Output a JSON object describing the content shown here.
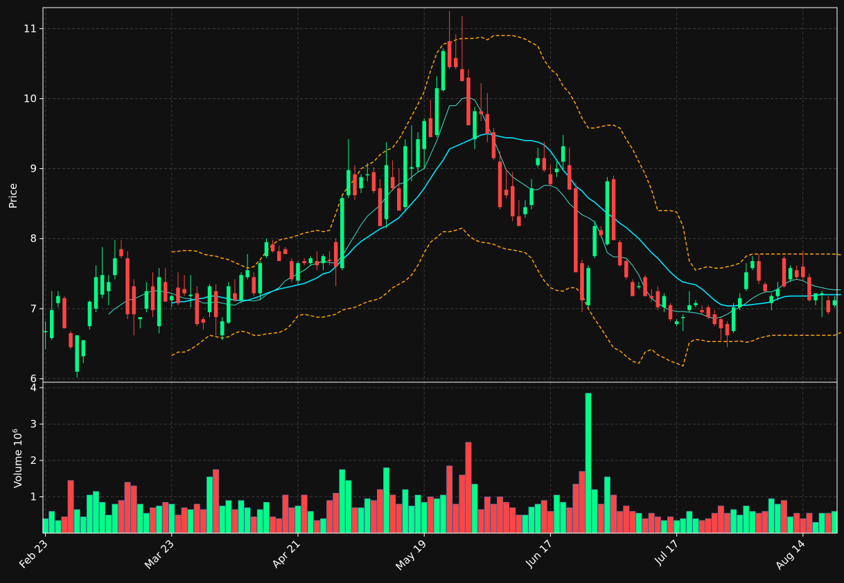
{
  "chart_data": {
    "type": "candlestick",
    "theme": {
      "background": "#111111",
      "grid_color": "#444444",
      "up_color": "#00ff88",
      "down_color": "#ff4444",
      "mav_fast_color": "#40e0d0",
      "mav_slow_color": "#00e5ff",
      "band_color": "#ffa500"
    },
    "ylabel": "Price",
    "volume_ylabel": "Volume  10",
    "volume_exponent": "6",
    "price_ylim": [
      5.95,
      11.3
    ],
    "volume_ylim": [
      0,
      4.15
    ],
    "price_ticks": [
      "6",
      "7",
      "8",
      "9",
      "10",
      "11"
    ],
    "volume_ticks": [
      "1",
      "2",
      "3",
      "4"
    ],
    "x_ticks": [
      {
        "index": 0,
        "label": "Feb 23"
      },
      {
        "index": 20,
        "label": "Mar 23"
      },
      {
        "index": 40,
        "label": "Apr 21"
      },
      {
        "index": 60,
        "label": "May 19"
      },
      {
        "index": 80,
        "label": "Jun 17"
      },
      {
        "index": 100,
        "label": "Jul 17"
      },
      {
        "index": 120,
        "label": "Aug 14"
      }
    ],
    "ohlcv": [
      [
        6.68,
        6.82,
        6.42,
        6.68,
        0.4
      ],
      [
        6.58,
        7.25,
        6.55,
        6.98,
        0.6
      ],
      [
        7.08,
        7.25,
        7.02,
        7.18,
        0.35
      ],
      [
        7.15,
        7.18,
        6.72,
        6.72,
        0.45
      ],
      [
        6.65,
        6.68,
        6.42,
        6.45,
        1.45
      ],
      [
        6.1,
        6.62,
        6.02,
        6.62,
        0.65
      ],
      [
        6.32,
        6.55,
        6.22,
        6.55,
        0.45
      ],
      [
        6.75,
        7.12,
        6.7,
        7.1,
        1.05
      ],
      [
        7.0,
        7.62,
        6.95,
        7.45,
        1.15
      ],
      [
        7.2,
        7.88,
        7.15,
        7.48,
        0.85
      ],
      [
        7.25,
        7.48,
        7.05,
        7.38,
        0.5
      ],
      [
        7.48,
        7.98,
        7.42,
        7.72,
        0.8
      ],
      [
        7.85,
        7.98,
        7.72,
        7.75,
        0.9
      ],
      [
        7.72,
        7.82,
        6.85,
        6.92,
        1.4
      ],
      [
        7.32,
        7.42,
        6.62,
        6.92,
        1.3
      ],
      [
        6.85,
        6.88,
        6.72,
        6.88,
        0.8
      ],
      [
        7.0,
        7.38,
        6.95,
        7.25,
        0.55
      ],
      [
        7.32,
        7.52,
        6.88,
        6.98,
        0.7
      ],
      [
        6.75,
        7.58,
        6.65,
        7.45,
        0.75
      ],
      [
        7.38,
        7.58,
        7.12,
        7.1,
        0.85
      ],
      [
        7.12,
        7.2,
        7.02,
        7.18,
        0.8
      ],
      [
        7.3,
        7.52,
        7.05,
        7.08,
        0.5
      ],
      [
        7.28,
        7.48,
        7.18,
        7.22,
        0.7
      ],
      [
        7.18,
        7.48,
        7.02,
        7.2,
        0.65
      ],
      [
        7.22,
        7.32,
        6.75,
        6.78,
        0.8
      ],
      [
        6.85,
        6.88,
        6.7,
        6.8,
        0.65
      ],
      [
        6.95,
        7.35,
        6.88,
        7.32,
        1.55
      ],
      [
        7.25,
        7.35,
        6.62,
        6.88,
        1.75
      ],
      [
        6.62,
        6.88,
        6.55,
        6.82,
        0.75
      ],
      [
        6.8,
        7.38,
        6.78,
        7.32,
        0.9
      ],
      [
        7.22,
        7.42,
        7.1,
        7.12,
        0.65
      ],
      [
        7.12,
        7.52,
        7.08,
        7.48,
        0.9
      ],
      [
        7.45,
        7.78,
        7.42,
        7.55,
        0.7
      ],
      [
        7.45,
        7.52,
        7.18,
        7.22,
        0.45
      ],
      [
        7.22,
        7.68,
        7.12,
        7.65,
        0.65
      ],
      [
        7.75,
        8.0,
        7.72,
        7.95,
        0.85
      ],
      [
        7.92,
        7.98,
        7.8,
        7.82,
        0.45
      ],
      [
        7.82,
        7.9,
        7.68,
        7.68,
        0.4
      ],
      [
        7.85,
        7.88,
        7.78,
        7.78,
        1.05
      ],
      [
        7.68,
        7.72,
        7.38,
        7.42,
        0.7
      ],
      [
        7.4,
        7.68,
        7.35,
        7.65,
        0.75
      ],
      [
        7.68,
        7.72,
        7.62,
        7.65,
        1.05
      ],
      [
        7.65,
        7.75,
        7.62,
        7.72,
        0.6
      ],
      [
        7.68,
        7.82,
        7.55,
        7.62,
        0.35
      ],
      [
        7.65,
        7.78,
        7.55,
        7.75,
        0.4
      ],
      [
        7.7,
        7.82,
        7.62,
        7.68,
        0.9
      ],
      [
        7.95,
        8.0,
        7.32,
        7.6,
        1.1
      ],
      [
        7.58,
        8.62,
        7.55,
        8.58,
        1.75
      ],
      [
        8.62,
        9.42,
        8.58,
        8.98,
        1.45
      ],
      [
        8.92,
        9.05,
        8.55,
        8.62,
        0.7
      ],
      [
        8.72,
        8.92,
        8.65,
        8.88,
        0.7
      ],
      [
        8.92,
        9.08,
        8.82,
        8.92,
        0.95
      ],
      [
        8.95,
        9.02,
        8.65,
        8.68,
        0.9
      ],
      [
        8.72,
        8.85,
        8.22,
        8.18,
        1.2
      ],
      [
        8.28,
        9.38,
        8.15,
        9.05,
        1.8
      ],
      [
        8.88,
        9.12,
        8.68,
        8.72,
        1.05
      ],
      [
        8.72,
        9.0,
        8.55,
        8.4,
        0.8
      ],
      [
        8.45,
        9.42,
        8.4,
        9.32,
        1.2
      ],
      [
        9.0,
        9.62,
        8.82,
        9.02,
        0.75
      ],
      [
        9.02,
        9.52,
        8.95,
        9.42,
        1.05
      ],
      [
        9.28,
        9.72,
        9.0,
        9.68,
        0.85
      ],
      [
        9.72,
        9.98,
        9.5,
        9.45,
        1.0
      ],
      [
        9.48,
        10.32,
        9.45,
        10.15,
        0.95
      ],
      [
        10.12,
        10.72,
        10.1,
        10.68,
        1.05
      ],
      [
        10.82,
        11.25,
        10.42,
        10.45,
        1.85
      ],
      [
        10.58,
        10.92,
        10.42,
        10.45,
        0.8
      ],
      [
        10.42,
        11.18,
        10.28,
        10.25,
        1.6
      ],
      [
        10.3,
        10.42,
        9.62,
        9.62,
        2.5
      ],
      [
        9.42,
        9.88,
        9.28,
        9.82,
        1.35
      ],
      [
        9.82,
        10.22,
        9.68,
        9.78,
        0.65
      ],
      [
        9.78,
        10.08,
        9.38,
        9.5,
        1.0
      ],
      [
        9.52,
        9.58,
        9.12,
        9.15,
        0.8
      ],
      [
        9.1,
        9.25,
        8.42,
        8.45,
        1.0
      ],
      [
        8.7,
        9.0,
        8.58,
        8.62,
        0.85
      ],
      [
        8.75,
        8.95,
        8.25,
        8.32,
        0.7
      ],
      [
        8.32,
        8.55,
        8.18,
        8.18,
        0.5
      ],
      [
        8.35,
        8.55,
        8.3,
        8.45,
        0.5
      ],
      [
        8.48,
        8.85,
        8.42,
        8.72,
        0.72
      ],
      [
        9.05,
        9.3,
        9.02,
        9.15,
        0.8
      ],
      [
        9.15,
        9.38,
        8.95,
        8.98,
        0.9
      ],
      [
        8.92,
        9.05,
        8.75,
        8.78,
        0.6
      ],
      [
        8.95,
        9.1,
        8.88,
        9.0,
        1.05
      ],
      [
        9.1,
        9.48,
        8.98,
        9.32,
        0.85
      ],
      [
        9.05,
        9.3,
        8.72,
        8.7,
        0.7
      ],
      [
        8.72,
        8.8,
        7.52,
        7.52,
        1.35
      ],
      [
        7.65,
        7.7,
        6.95,
        7.12,
        1.7
      ],
      [
        7.05,
        7.62,
        7.02,
        7.58,
        3.85
      ],
      [
        7.75,
        8.25,
        7.72,
        8.18,
        1.2
      ],
      [
        8.12,
        8.18,
        8.02,
        8.05,
        0.8
      ],
      [
        7.92,
        8.88,
        7.9,
        8.82,
        1.55
      ],
      [
        8.85,
        8.9,
        7.98,
        7.98,
        1.05
      ],
      [
        7.95,
        7.98,
        7.6,
        7.62,
        0.6
      ],
      [
        7.68,
        7.7,
        7.42,
        7.45,
        0.75
      ],
      [
        7.38,
        7.42,
        7.18,
        7.18,
        0.6
      ],
      [
        7.32,
        7.38,
        7.28,
        7.32,
        0.55
      ],
      [
        7.45,
        7.48,
        7.18,
        7.18,
        0.4
      ],
      [
        7.18,
        7.28,
        7.1,
        7.15,
        0.55
      ],
      [
        7.25,
        7.32,
        6.98,
        7.02,
        0.45
      ],
      [
        7.02,
        7.22,
        6.95,
        7.18,
        0.35
      ],
      [
        7.05,
        7.08,
        6.82,
        6.85,
        0.45
      ],
      [
        6.78,
        6.85,
        6.75,
        6.82,
        0.35
      ],
      [
        6.88,
        6.92,
        6.68,
        6.88,
        0.4
      ],
      [
        6.98,
        7.25,
        6.95,
        7.05,
        0.6
      ],
      [
        7.05,
        7.12,
        7.02,
        7.08,
        0.4
      ],
      [
        6.98,
        7.05,
        6.92,
        6.95,
        0.35
      ],
      [
        7.02,
        7.05,
        6.85,
        6.88,
        0.4
      ],
      [
        6.92,
        6.98,
        6.75,
        6.78,
        0.55
      ],
      [
        6.85,
        6.88,
        6.55,
        6.72,
        0.75
      ],
      [
        6.78,
        6.82,
        6.45,
        6.62,
        0.55
      ],
      [
        6.68,
        7.08,
        6.65,
        7.02,
        0.65
      ],
      [
        7.02,
        7.22,
        6.98,
        7.15,
        0.5
      ],
      [
        7.28,
        7.65,
        7.25,
        7.52,
        0.75
      ],
      [
        7.58,
        7.75,
        7.55,
        7.68,
        0.6
      ],
      [
        7.68,
        7.78,
        7.35,
        7.4,
        0.55
      ],
      [
        7.35,
        7.38,
        7.22,
        7.25,
        0.6
      ],
      [
        7.08,
        7.22,
        6.98,
        7.18,
        0.95
      ],
      [
        7.18,
        7.38,
        7.12,
        7.28,
        0.8
      ],
      [
        7.72,
        7.75,
        7.3,
        7.32,
        0.9
      ],
      [
        7.42,
        7.62,
        7.38,
        7.58,
        0.45
      ],
      [
        7.55,
        7.62,
        7.42,
        7.45,
        0.55
      ],
      [
        7.6,
        7.82,
        7.4,
        7.45,
        0.4
      ],
      [
        7.45,
        7.5,
        7.1,
        7.12,
        0.55
      ],
      [
        7.12,
        7.22,
        7.05,
        7.22,
        0.3
      ],
      [
        7.2,
        7.25,
        6.88,
        7.22,
        0.55
      ],
      [
        7.12,
        7.18,
        6.92,
        6.95,
        0.55
      ],
      [
        7.05,
        7.18,
        7.02,
        7.12,
        0.6
      ]
    ],
    "series": {
      "mav_fast": [
        null,
        null,
        null,
        null,
        null,
        null,
        null,
        null,
        null,
        null,
        6.92,
        7.0,
        7.06,
        7.12,
        7.14,
        7.18,
        7.22,
        7.26,
        7.25,
        7.24,
        7.22,
        7.18,
        7.15,
        7.14,
        7.12,
        7.08,
        7.08,
        7.1,
        7.08,
        7.06,
        7.05,
        7.1,
        7.12,
        7.11,
        7.13,
        7.2,
        7.25,
        7.3,
        7.4,
        7.45,
        7.5,
        7.55,
        7.62,
        7.65,
        7.68,
        7.66,
        7.65,
        7.75,
        7.9,
        8.05,
        8.2,
        8.32,
        8.4,
        8.48,
        8.6,
        8.7,
        8.78,
        8.8,
        8.88,
        8.95,
        9.0,
        9.2,
        9.4,
        9.65,
        9.9,
        9.9,
        10.0,
        10.02,
        9.98,
        9.82,
        9.62,
        9.42,
        9.2,
        8.98,
        8.88,
        8.82,
        8.76,
        8.7,
        8.7,
        8.76,
        8.76,
        8.72,
        8.62,
        8.5,
        8.42,
        8.34,
        8.3,
        8.24,
        8.05,
        7.8,
        7.74,
        7.74,
        7.72,
        7.62,
        7.48,
        7.28,
        7.15,
        7.08,
        7.02,
        6.98,
        6.96,
        6.96,
        6.95,
        6.94,
        6.92,
        6.88,
        6.86,
        6.88,
        6.92,
        6.98,
        7.02,
        7.08,
        7.15,
        7.2,
        7.24,
        7.24,
        7.28,
        7.35,
        7.4,
        7.42,
        7.4,
        7.35,
        7.32,
        7.3,
        7.28,
        7.27,
        7.27
      ],
      "mav_slow": [
        null,
        null,
        null,
        null,
        null,
        null,
        null,
        null,
        null,
        null,
        null,
        null,
        null,
        null,
        null,
        null,
        null,
        null,
        null,
        null,
        7.08,
        7.1,
        7.1,
        7.12,
        7.14,
        7.15,
        7.18,
        7.18,
        7.16,
        7.14,
        7.12,
        7.12,
        7.12,
        7.15,
        7.18,
        7.22,
        7.25,
        7.28,
        7.3,
        7.32,
        7.34,
        7.36,
        7.4,
        7.44,
        7.5,
        7.52,
        7.6,
        7.7,
        7.78,
        7.88,
        7.96,
        8.02,
        8.08,
        8.14,
        8.18,
        8.24,
        8.3,
        8.4,
        8.5,
        8.6,
        8.72,
        8.86,
        9.0,
        9.12,
        9.28,
        9.32,
        9.36,
        9.4,
        9.44,
        9.48,
        9.5,
        9.48,
        9.46,
        9.44,
        9.44,
        9.42,
        9.4,
        9.4,
        9.38,
        9.34,
        9.25,
        9.12,
        8.98,
        8.88,
        8.75,
        8.68,
        8.58,
        8.52,
        8.44,
        8.36,
        8.3,
        8.22,
        8.16,
        8.08,
        8.0,
        7.9,
        7.8,
        7.72,
        7.62,
        7.52,
        7.44,
        7.38,
        7.36,
        7.34,
        7.28,
        7.2,
        7.12,
        7.06,
        7.04,
        7.04,
        7.05,
        7.05,
        7.06,
        7.07,
        7.08,
        7.1,
        7.14,
        7.17,
        7.18,
        7.18,
        7.18,
        7.18,
        7.19,
        7.2,
        7.2,
        7.2,
        7.2
      ],
      "upper_band": [
        null,
        null,
        null,
        null,
        null,
        null,
        null,
        null,
        null,
        null,
        null,
        null,
        null,
        null,
        null,
        null,
        null,
        null,
        null,
        null,
        7.81,
        7.82,
        7.83,
        7.83,
        7.82,
        7.78,
        7.76,
        7.75,
        7.72,
        7.7,
        7.66,
        7.62,
        7.58,
        7.6,
        7.7,
        7.82,
        7.92,
        7.98,
        8.0,
        8.02,
        8.05,
        8.08,
        8.1,
        8.12,
        8.1,
        8.12,
        8.36,
        8.62,
        8.75,
        8.85,
        9.0,
        9.05,
        9.1,
        9.2,
        9.26,
        9.3,
        9.42,
        9.58,
        9.75,
        9.92,
        10.1,
        10.4,
        10.65,
        10.78,
        10.8,
        10.84,
        10.86,
        10.86,
        10.86,
        10.88,
        10.84,
        10.9,
        10.9,
        10.9,
        10.9,
        10.88,
        10.85,
        10.8,
        10.75,
        10.55,
        10.42,
        10.35,
        10.18,
        10.08,
        9.92,
        9.72,
        9.58,
        9.58,
        9.6,
        9.62,
        9.62,
        9.58,
        9.42,
        9.28,
        9.1,
        8.92,
        8.7,
        8.4,
        8.4,
        8.4,
        8.38,
        8.18,
        7.68,
        7.55,
        7.58,
        7.6,
        7.58,
        7.58,
        7.6,
        7.62,
        7.65,
        7.75,
        7.78,
        7.78,
        7.78,
        7.78,
        7.78,
        7.78,
        7.78,
        7.78,
        7.78,
        7.78,
        7.78,
        7.78,
        7.78,
        7.78,
        7.77
      ],
      "lower_band": [
        null,
        null,
        null,
        null,
        null,
        null,
        null,
        null,
        null,
        null,
        null,
        null,
        null,
        null,
        null,
        null,
        null,
        null,
        null,
        null,
        6.33,
        6.38,
        6.38,
        6.42,
        6.48,
        6.55,
        6.62,
        6.6,
        6.58,
        6.6,
        6.65,
        6.68,
        6.66,
        6.62,
        6.62,
        6.64,
        6.65,
        6.66,
        6.7,
        6.78,
        6.9,
        6.92,
        6.9,
        6.88,
        6.88,
        6.9,
        6.92,
        6.98,
        7.0,
        7.02,
        7.06,
        7.1,
        7.12,
        7.15,
        7.22,
        7.3,
        7.35,
        7.4,
        7.48,
        7.62,
        7.8,
        7.95,
        8.02,
        8.1,
        8.1,
        8.12,
        8.15,
        8.05,
        7.98,
        7.95,
        7.94,
        7.92,
        7.88,
        7.85,
        7.84,
        7.82,
        7.8,
        7.72,
        7.55,
        7.4,
        7.3,
        7.26,
        7.25,
        7.3,
        7.3,
        7.2,
        7.0,
        6.85,
        6.72,
        6.58,
        6.44,
        6.4,
        6.32,
        6.25,
        6.22,
        6.38,
        6.42,
        6.34,
        6.3,
        6.25,
        6.22,
        6.18,
        6.52,
        6.56,
        6.55,
        6.53,
        6.53,
        6.53,
        6.53,
        6.53,
        6.54,
        6.52,
        6.54,
        6.58,
        6.6,
        6.62,
        6.62,
        6.62,
        6.62,
        6.62,
        6.62,
        6.62,
        6.62,
        6.62,
        6.62,
        6.62,
        6.66
      ]
    }
  }
}
